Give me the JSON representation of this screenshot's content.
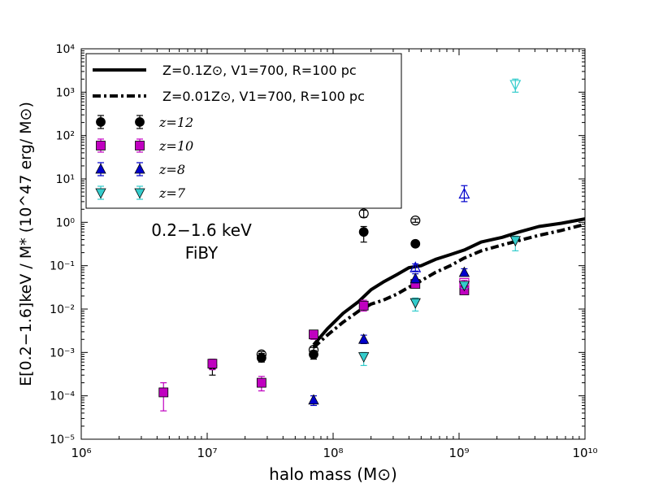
{
  "chart_data": {
    "type": "scatter",
    "x_scale": "log",
    "y_scale": "log",
    "xlim": [
      1000000,
      10000000000
    ],
    "ylim": [
      1e-05,
      10000
    ],
    "grid": false,
    "legend_position": "top-left",
    "xlabel": "halo mass (M⊙)",
    "ylabel": "E[0.2−1.6]keV / M* (10^47 erg/ M⊙)",
    "x_ticks": [
      {
        "value": 1000000,
        "label": "10⁶"
      },
      {
        "value": 10000000,
        "label": "10⁷"
      },
      {
        "value": 100000000,
        "label": "10⁸"
      },
      {
        "value": 1000000000,
        "label": "10⁹"
      },
      {
        "value": 10000000000,
        "label": "10¹⁰"
      }
    ],
    "y_ticks": [
      {
        "value": 1e-05,
        "label": "10⁻⁵"
      },
      {
        "value": 0.0001,
        "label": "10⁻⁴"
      },
      {
        "value": 0.001,
        "label": "10⁻³"
      },
      {
        "value": 0.01,
        "label": "10⁻²"
      },
      {
        "value": 0.1,
        "label": "10⁻¹"
      },
      {
        "value": 1,
        "label": "10⁰"
      },
      {
        "value": 10,
        "label": "10¹"
      },
      {
        "value": 100,
        "label": "10²"
      },
      {
        "value": 1000,
        "label": "10³"
      },
      {
        "value": 10000,
        "label": "10⁴"
      }
    ],
    "annotation": {
      "line1": "0.2−1.6 keV",
      "line2": "FiBY"
    },
    "lines": [
      {
        "name": "Z=0.1Z⊙, V1=700, R=100 pc",
        "style": "solid",
        "color": "#000000",
        "x": [
          70000000,
          90000000,
          120000000,
          160000000,
          200000000,
          250000000,
          320000000,
          400000000,
          500000000,
          650000000,
          850000000,
          1100000000,
          1500000000,
          2200000000,
          3000000000,
          4300000000,
          6500000000,
          10000000000
        ],
        "y": [
          0.0015,
          0.0035,
          0.008,
          0.015,
          0.028,
          0.042,
          0.062,
          0.09,
          0.1,
          0.14,
          0.18,
          0.23,
          0.35,
          0.45,
          0.6,
          0.8,
          0.95,
          1.2
        ]
      },
      {
        "name": "Z=0.01Z⊙, V1=700, R=100 pc",
        "style": "dashdot",
        "color": "#000000",
        "x": [
          70000000,
          90000000,
          120000000,
          160000000,
          200000000,
          250000000,
          320000000,
          400000000,
          500000000,
          650000000,
          850000000,
          1100000000,
          1500000000,
          2200000000,
          3000000000,
          4300000000,
          6500000000,
          10000000000
        ],
        "y": [
          0.0013,
          0.0025,
          0.005,
          0.009,
          0.013,
          0.016,
          0.022,
          0.032,
          0.045,
          0.07,
          0.1,
          0.15,
          0.22,
          0.3,
          0.38,
          0.5,
          0.65,
          0.9
        ]
      }
    ],
    "series": [
      {
        "name": "z=12",
        "marker": "circle",
        "color": "#000000",
        "points": [
          {
            "x": 11000000,
            "y": 0.0005,
            "lo": 0.0003,
            "hi": 0.0006,
            "filled": true
          },
          {
            "x": 27000000,
            "y": 0.00075,
            "lo": 0.0006,
            "hi": 0.00095,
            "filled": true
          },
          {
            "x": 70000000,
            "y": 0.0009,
            "lo": 0.0007,
            "hi": 0.0011,
            "filled": true
          },
          {
            "x": 70000000,
            "y": 0.00115,
            "lo": 0.00095,
            "hi": 0.0013,
            "filled": false
          },
          {
            "x": 27000000,
            "y": 0.0009,
            "lo": 0.00075,
            "hi": 0.00105,
            "filled": false
          },
          {
            "x": 175000000,
            "y": 0.6,
            "lo": 0.35,
            "hi": 0.8,
            "filled": true
          },
          {
            "x": 175000000,
            "y": 1.6,
            "lo": 1.3,
            "hi": 1.9,
            "filled": false
          },
          {
            "x": 450000000,
            "y": 0.32,
            "lo": 0.3,
            "hi": 0.34,
            "filled": true
          },
          {
            "x": 450000000,
            "y": 1.1,
            "lo": 1.0,
            "hi": 1.2,
            "filled": false
          }
        ]
      },
      {
        "name": "z=10",
        "marker": "square",
        "color": "#c000c0",
        "points": [
          {
            "x": 4500000,
            "y": 0.00012,
            "lo": 4.5e-05,
            "hi": 0.0002,
            "filled": true
          },
          {
            "x": 11000000,
            "y": 0.00055,
            "lo": 0.0004,
            "hi": 0.0007,
            "filled": true
          },
          {
            "x": 27000000,
            "y": 0.0002,
            "lo": 0.00013,
            "hi": 0.00028,
            "filled": true
          },
          {
            "x": 70000000,
            "y": 0.0026,
            "lo": 0.002,
            "hi": 0.0032,
            "filled": true
          },
          {
            "x": 175000000,
            "y": 0.012,
            "lo": 0.009,
            "hi": 0.016,
            "filled": true
          },
          {
            "x": 450000000,
            "y": 0.038,
            "lo": 0.032,
            "hi": 0.045,
            "filled": true
          },
          {
            "x": 1100000000,
            "y": 0.027,
            "lo": 0.022,
            "hi": 0.032,
            "filled": true
          },
          {
            "x": 1100000000,
            "y": 0.04,
            "lo": 0.035,
            "hi": 0.046,
            "filled": false
          }
        ]
      },
      {
        "name": "z=8",
        "marker": "triangle-up",
        "color": "#0000cc",
        "points": [
          {
            "x": 70000000,
            "y": 8e-05,
            "lo": 6e-05,
            "hi": 0.0001,
            "filled": true
          },
          {
            "x": 175000000,
            "y": 0.002,
            "lo": 0.0016,
            "hi": 0.0025,
            "filled": true
          },
          {
            "x": 450000000,
            "y": 0.05,
            "lo": 0.04,
            "hi": 0.065,
            "filled": true
          },
          {
            "x": 450000000,
            "y": 0.09,
            "lo": 0.075,
            "hi": 0.11,
            "filled": false
          },
          {
            "x": 1100000000,
            "y": 0.07,
            "lo": 0.058,
            "hi": 0.085,
            "filled": true
          },
          {
            "x": 1100000000,
            "y": 4.5,
            "lo": 3.0,
            "hi": 7.0,
            "filled": false
          }
        ]
      },
      {
        "name": "z=7",
        "marker": "triangle-down",
        "color": "#33cccc",
        "points": [
          {
            "x": 175000000,
            "y": 0.0008,
            "lo": 0.0005,
            "hi": 0.001,
            "filled": true
          },
          {
            "x": 450000000,
            "y": 0.014,
            "lo": 0.009,
            "hi": 0.018,
            "filled": true
          },
          {
            "x": 1100000000,
            "y": 0.035,
            "lo": 0.03,
            "hi": 0.041,
            "filled": true
          },
          {
            "x": 2800000000,
            "y": 0.38,
            "lo": 0.22,
            "hi": 0.48,
            "filled": true
          },
          {
            "x": 2800000000,
            "y": 1500,
            "lo": 1000,
            "hi": 2000,
            "filled": false
          }
        ]
      }
    ],
    "legend": {
      "line_entries": [
        {
          "label": "Z=0.1Z⊙, V1=700, R=100 pc",
          "style": "solid"
        },
        {
          "label": "Z=0.01Z⊙, V1=700, R=100 pc",
          "style": "dashdot"
        }
      ],
      "marker_entries": [
        {
          "label": "z=12",
          "marker": "circle",
          "color": "#000000"
        },
        {
          "label": "z=10",
          "marker": "square",
          "color": "#c000c0"
        },
        {
          "label": "z=8",
          "marker": "triangle-up",
          "color": "#0000cc"
        },
        {
          "label": "z=7",
          "marker": "triangle-down",
          "color": "#33cccc"
        }
      ]
    }
  }
}
